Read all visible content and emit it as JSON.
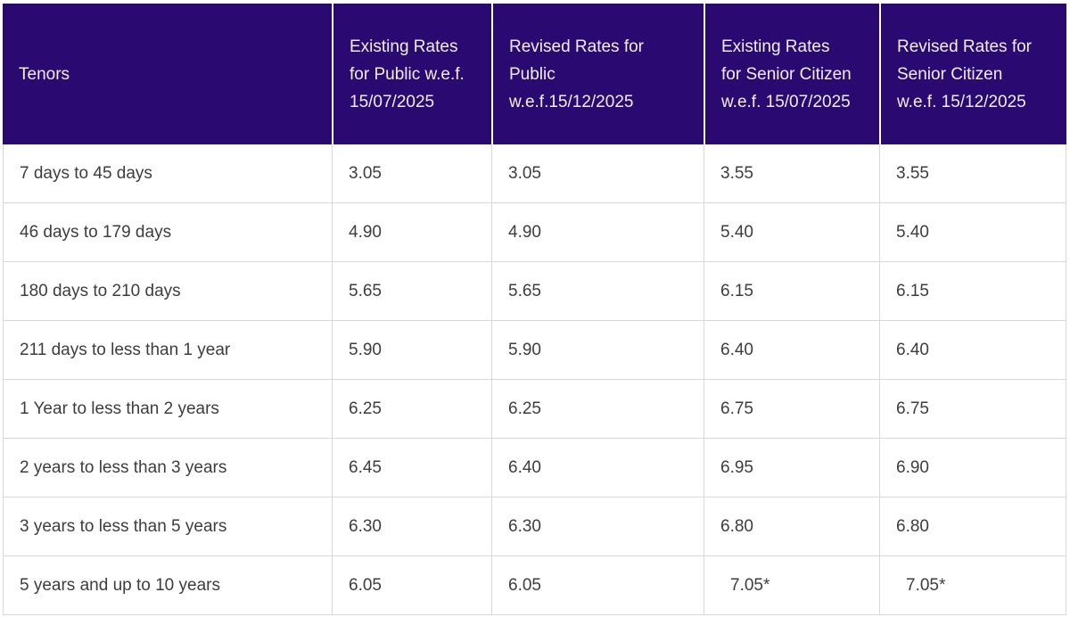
{
  "colors": {
    "header_bg": "#2a0a70",
    "header_text": "#f2eef9",
    "body_text": "#3d3d3d",
    "grid_border": "#d8d8d8",
    "header_divider": "#ffffff"
  },
  "chart_data": {
    "type": "table",
    "columns": [
      "Tenors",
      "Existing Rates for Public w.e.f. 15/07/2025",
      "Revised Rates for Public w.e.f.15/12/2025",
      "Existing Rates for Senior Citizen w.e.f. 15/07/2025",
      "Revised Rates for Senior Citizen w.e.f. 15/12/2025"
    ],
    "rows": [
      [
        "7 days to 45 days",
        "3.05",
        "3.05",
        "3.55",
        "3.55"
      ],
      [
        "46 days to 179 days",
        "4.90",
        "4.90",
        "5.40",
        "5.40"
      ],
      [
        "180 days to 210 days",
        "5.65",
        "5.65",
        "6.15",
        "6.15"
      ],
      [
        "211 days to less than 1 year",
        "5.90",
        "5.90",
        "6.40",
        "6.40"
      ],
      [
        "1 Year to less than 2 years",
        "6.25",
        "6.25",
        "6.75",
        "6.75"
      ],
      [
        "2 years to less than 3 years",
        "6.45",
        "6.40",
        "6.95",
        "6.90"
      ],
      [
        "3 years to less than 5 years",
        "6.30",
        "6.30",
        "6.80",
        "6.80"
      ],
      [
        "5 years and up to 10 years",
        "6.05",
        "6.05",
        "7.05*",
        "7.05*"
      ]
    ]
  }
}
